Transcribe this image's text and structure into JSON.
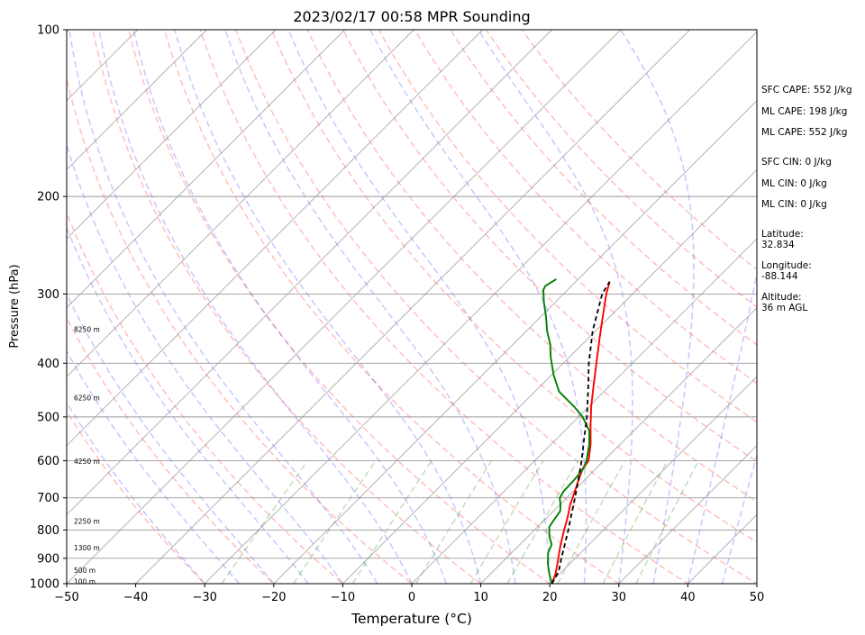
{
  "chart_data": {
    "type": "line",
    "subtype": "skew-t log-p sounding",
    "title": "2023/02/17 00:58 MPR Sounding",
    "xlabel": "Temperature (°C)",
    "ylabel": "Pressure (hPa)",
    "xlim": [
      -50,
      50
    ],
    "ylim": [
      1000,
      100
    ],
    "yscale": "log",
    "x_ticks": [
      -50,
      -40,
      -30,
      -20,
      -10,
      0,
      10,
      20,
      30,
      40,
      50
    ],
    "x_tick_labels": [
      "−50",
      "−40",
      "−30",
      "−20",
      "−10",
      "0",
      "10",
      "20",
      "30",
      "40",
      "50"
    ],
    "y_ticks": [
      100,
      200,
      300,
      400,
      500,
      600,
      700,
      800,
      900,
      1000
    ],
    "y_tick_labels": [
      "100",
      "200",
      "300",
      "400",
      "500",
      "600",
      "700",
      "800",
      "900",
      "1000"
    ],
    "grid": true,
    "series": [
      {
        "name": "",
        "color": "#ff0000",
        "style": "solid",
        "points": [
          [
            1000,
            20.3
          ],
          [
            960,
            19.4
          ],
          [
            920,
            18.2
          ],
          [
            880,
            16.9
          ],
          [
            850,
            15.9
          ],
          [
            800,
            14.3
          ],
          [
            760,
            13.0
          ],
          [
            720,
            11.5
          ],
          [
            680,
            10.2
          ],
          [
            640,
            8.8
          ],
          [
            620,
            8.1
          ],
          [
            600,
            7.8
          ],
          [
            560,
            5.7
          ],
          [
            520,
            3.1
          ],
          [
            480,
            0.4
          ],
          [
            450,
            -1.6
          ],
          [
            400,
            -5.2
          ],
          [
            360,
            -8.4
          ],
          [
            330,
            -11.0
          ],
          [
            300,
            -13.8
          ],
          [
            285,
            -15.1
          ]
        ]
      },
      {
        "name": "",
        "color": "#008000",
        "style": "solid",
        "points": [
          [
            1000,
            20.3
          ],
          [
            960,
            18.5
          ],
          [
            920,
            16.8
          ],
          [
            880,
            15.3
          ],
          [
            850,
            14.6
          ],
          [
            820,
            13.0
          ],
          [
            790,
            11.7
          ],
          [
            770,
            11.4
          ],
          [
            740,
            11.0
          ],
          [
            720,
            10.1
          ],
          [
            700,
            9.0
          ],
          [
            680,
            8.6
          ],
          [
            650,
            8.5
          ],
          [
            620,
            8.2
          ],
          [
            600,
            7.5
          ],
          [
            560,
            5.5
          ],
          [
            530,
            3.6
          ],
          [
            500,
            0.6
          ],
          [
            480,
            -2.0
          ],
          [
            450,
            -6.5
          ],
          [
            420,
            -9.7
          ],
          [
            390,
            -12.7
          ],
          [
            370,
            -14.6
          ],
          [
            350,
            -17.0
          ],
          [
            330,
            -19.2
          ],
          [
            310,
            -21.7
          ],
          [
            295,
            -23.5
          ],
          [
            290,
            -23.8
          ],
          [
            282,
            -23.2
          ]
        ]
      },
      {
        "name": "",
        "color": "#000000",
        "style": "dashed",
        "points": [
          [
            1000,
            20.3
          ],
          [
            950,
            19.5
          ],
          [
            900,
            18.0
          ],
          [
            850,
            16.5
          ],
          [
            800,
            14.9
          ],
          [
            750,
            13.1
          ],
          [
            700,
            11.2
          ],
          [
            650,
            9.1
          ],
          [
            600,
            6.8
          ],
          [
            550,
            4.1
          ],
          [
            500,
            1.2
          ],
          [
            450,
            -2.3
          ],
          [
            400,
            -6.3
          ],
          [
            350,
            -10.4
          ],
          [
            300,
            -14.4
          ],
          [
            285,
            -15.1
          ]
        ]
      }
    ],
    "background_lines": {
      "isotherms_every_c": 10,
      "dry_adiabats_theta_k": [
        -30,
        -20,
        -10,
        0,
        10,
        20,
        30,
        40,
        50,
        60,
        70,
        80,
        90,
        100,
        110,
        120,
        130
      ],
      "moist_adiabats_start_c": [
        -30,
        -25,
        -20,
        -15,
        -10,
        -5,
        0,
        5,
        10,
        15,
        20,
        25,
        30,
        35,
        40,
        45
      ],
      "mixing_ratio_lines": [
        0.4,
        1,
        2,
        4,
        7,
        10,
        16,
        24,
        32
      ]
    },
    "height_labels": [
      {
        "text": "100 m",
        "p": 992
      },
      {
        "text": "500 m",
        "p": 948
      },
      {
        "text": "1300 m",
        "p": 862
      },
      {
        "text": "2250 m",
        "p": 772
      },
      {
        "text": "4250 m",
        "p": 602
      },
      {
        "text": "6250 m",
        "p": 462
      },
      {
        "text": "8250 m",
        "p": 348
      }
    ]
  },
  "info": {
    "sfc_cape": "SFC CAPE: 552 J/kg",
    "ml_cape_1": "ML CAPE: 198 J/kg",
    "ml_cape_2": "ML CAPE: 552 J/kg",
    "sfc_cin": "SFC CIN: 0 J/kg",
    "ml_cin_1": "ML CIN: 0 J/kg",
    "ml_cin_2": "ML CIN: 0 J/kg",
    "latitude": "Latitude:\n32.834",
    "longitude": "Longitude:\n-88.144",
    "altitude": "Altitude:\n36 m AGL"
  }
}
